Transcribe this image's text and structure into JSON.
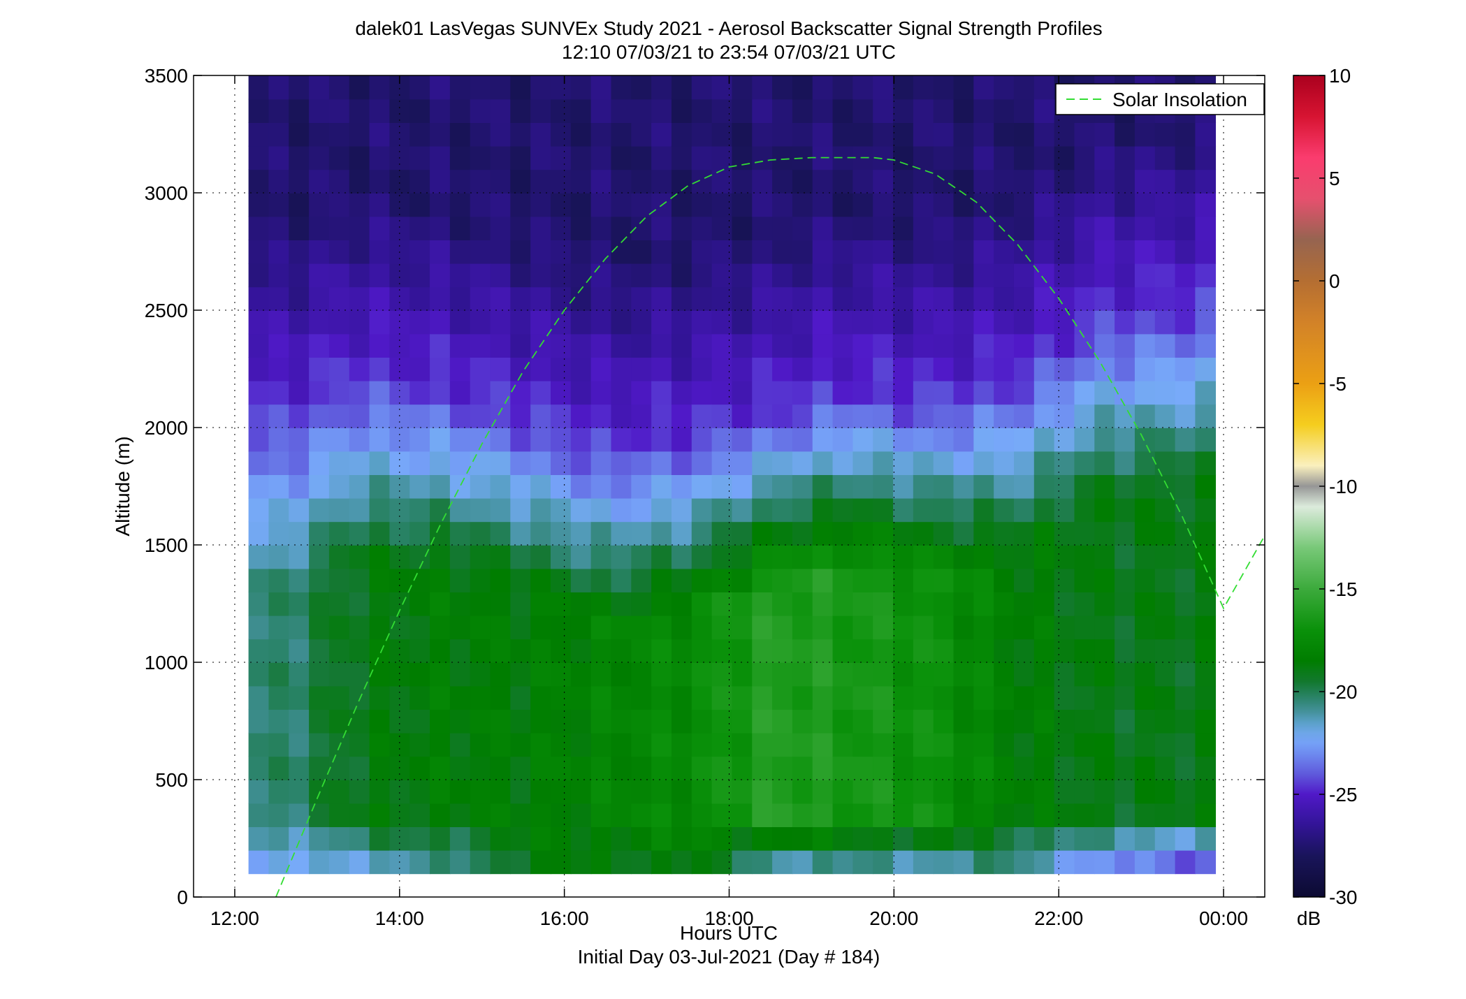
{
  "chart_data": {
    "type": "heatmap",
    "title": "dalek01 LasVegas SUNVEx Study 2021 - Aerosol Backscatter Signal Strength Profiles",
    "subtitle": "12:10 07/03/21 to 23:54 07/03/21  UTC",
    "xlabel": "Hours UTC",
    "xlabel2": "Initial Day 03-Jul-2021 (Day # 184)",
    "ylabel": "Altitude (m)",
    "xlim": [
      11.5,
      24.5
    ],
    "ylim": [
      0,
      3500
    ],
    "xticks": [
      12,
      14,
      16,
      18,
      20,
      22,
      24
    ],
    "xtick_labels": [
      "12:00",
      "14:00",
      "16:00",
      "18:00",
      "20:00",
      "22:00",
      "00:00"
    ],
    "yticks": [
      0,
      500,
      1000,
      1500,
      2000,
      2500,
      3000,
      3500
    ],
    "ytick_labels": [
      "0",
      "500",
      "1000",
      "1500",
      "2000",
      "2500",
      "3000",
      "3500"
    ],
    "grid": true,
    "data_x_range": [
      12.1667,
      23.9
    ],
    "data_y_range": [
      100,
      3500
    ],
    "colorbar": {
      "label": "dB",
      "range": [
        -30,
        10
      ],
      "ticks": [
        10,
        5,
        0,
        -5,
        -10,
        -15,
        -20,
        -25,
        -30
      ],
      "tick_labels": [
        "10",
        "5",
        "0",
        "-5",
        "-10",
        "-15",
        "-20",
        "-25",
        "-30"
      ]
    },
    "legend": {
      "position": "top-right",
      "entries": [
        "Solar Insolation"
      ]
    },
    "series": [
      {
        "name": "Solar Insolation",
        "color": "#33dd33",
        "style": "dashed",
        "x": [
          12.5,
          13.0,
          13.5,
          14.0,
          14.5,
          15.0,
          15.5,
          16.0,
          16.5,
          17.0,
          17.5,
          18.0,
          18.5,
          19.0,
          19.5,
          19.75,
          20.0,
          20.5,
          21.0,
          21.5,
          22.0,
          22.5,
          23.0,
          23.5,
          24.0,
          24.5
        ],
        "y": [
          0,
          420,
          830,
          1220,
          1590,
          1930,
          2240,
          2500,
          2720,
          2900,
          3030,
          3110,
          3140,
          3150,
          3150,
          3150,
          3140,
          3080,
          2960,
          2780,
          2550,
          2280,
          1970,
          1620,
          1230,
          1540
        ]
      }
    ],
    "profiles": [
      {
        "x": 12.5,
        "boundary_layer_top": 1550,
        "bl_dB": -20.5,
        "surface_dB": -23
      },
      {
        "x": 13.5,
        "boundary_layer_top": 1700,
        "bl_dB": -19.0,
        "surface_dB": -22
      },
      {
        "x": 14.5,
        "boundary_layer_top": 1650,
        "bl_dB": -18.5,
        "surface_dB": -21.5
      },
      {
        "x": 15.5,
        "boundary_layer_top": 1550,
        "bl_dB": -18.5,
        "surface_dB": -19
      },
      {
        "x": 16.5,
        "boundary_layer_top": 1400,
        "bl_dB": -18.0,
        "surface_dB": -19
      },
      {
        "x": 17.5,
        "boundary_layer_top": 1450,
        "bl_dB": -17.5,
        "surface_dB": -19
      },
      {
        "x": 18.5,
        "boundary_layer_top": 1550,
        "bl_dB": -16.0,
        "surface_dB": -22
      },
      {
        "x": 19.5,
        "boundary_layer_top": 1650,
        "bl_dB": -16.5,
        "surface_dB": -22
      },
      {
        "x": 20.5,
        "boundary_layer_top": 1600,
        "bl_dB": -17.0,
        "surface_dB": -22
      },
      {
        "x": 21.5,
        "boundary_layer_top": 1700,
        "bl_dB": -18.5,
        "surface_dB": -21
      },
      {
        "x": 22.5,
        "boundary_layer_top": 1950,
        "bl_dB": -19.0,
        "surface_dB": -24
      },
      {
        "x": 23.5,
        "boundary_layer_top": 2000,
        "bl_dB": -19.0,
        "surface_dB": -25
      }
    ],
    "free_troposphere_dB": -27.5
  }
}
